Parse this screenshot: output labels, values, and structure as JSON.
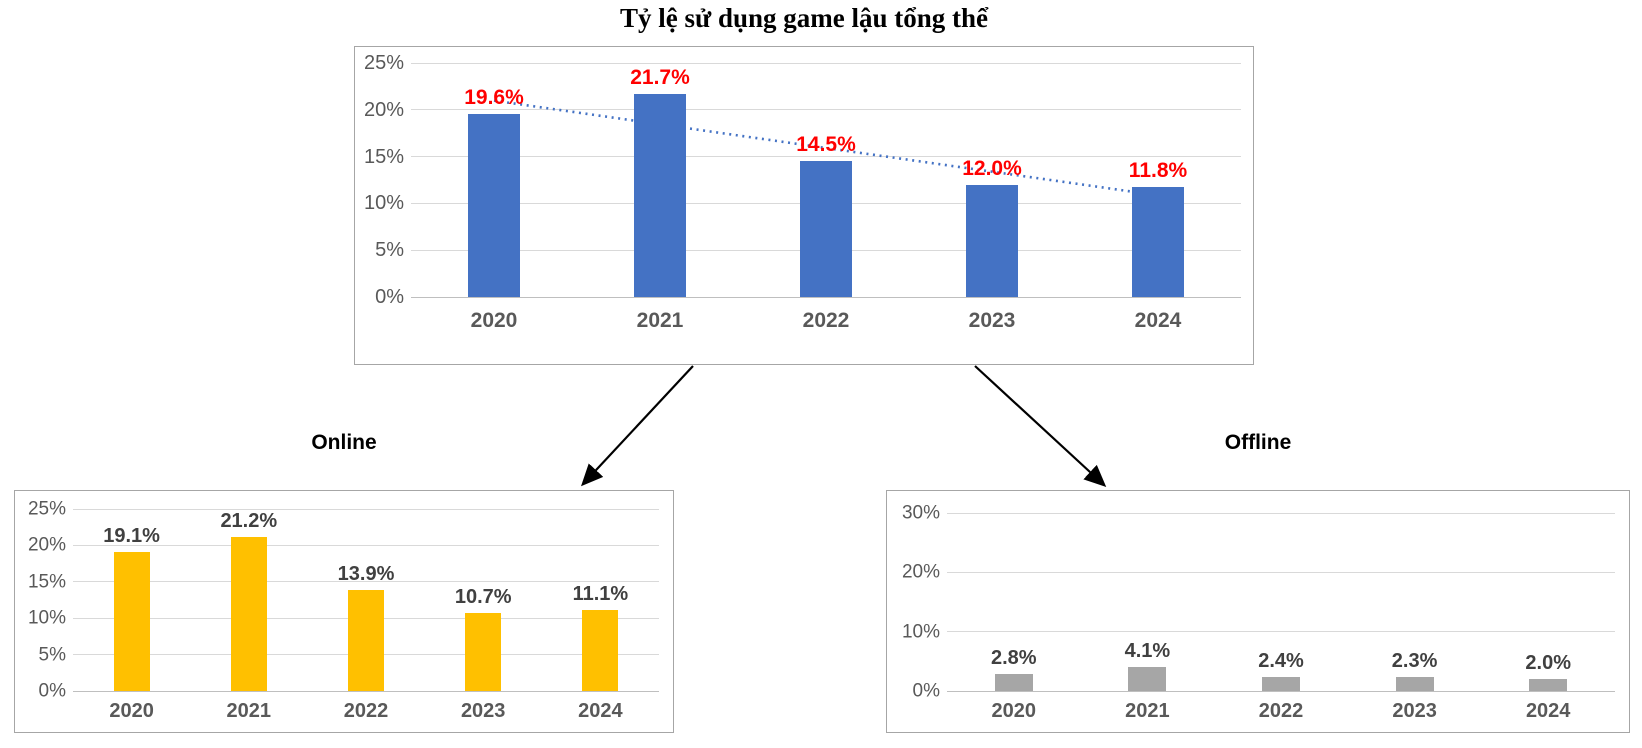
{
  "chart_data": [
    {
      "id": "overall",
      "type": "bar",
      "title": "Tỷ lệ sử dụng game lậu tổng thể",
      "categories": [
        "2020",
        "2021",
        "2022",
        "2023",
        "2024"
      ],
      "values": [
        19.6,
        21.7,
        14.5,
        12.0,
        11.8
      ],
      "value_labels": [
        "19.6%",
        "21.7%",
        "14.5%",
        "12.0%",
        "11.8%"
      ],
      "ylim": [
        0,
        25
      ],
      "ystep": 5,
      "y_tick_labels": [
        "0%",
        "5%",
        "10%",
        "15%",
        "20%",
        "25%"
      ],
      "xlabel": "",
      "ylabel": "",
      "grid": true,
      "legend": "none",
      "bar_color": "#4472C4",
      "value_label_color": "#FF0000",
      "trendline": {
        "type": "linear",
        "style": "dotted",
        "color": "#4472C4"
      }
    },
    {
      "id": "online",
      "type": "bar",
      "title": "Online",
      "categories": [
        "2020",
        "2021",
        "2022",
        "2023",
        "2024"
      ],
      "values": [
        19.1,
        21.2,
        13.9,
        10.7,
        11.1
      ],
      "value_labels": [
        "19.1%",
        "21.2%",
        "13.9%",
        "10.7%",
        "11.1%"
      ],
      "ylim": [
        0,
        25
      ],
      "ystep": 5,
      "y_tick_labels": [
        "0%",
        "5%",
        "10%",
        "15%",
        "20%",
        "25%"
      ],
      "xlabel": "",
      "ylabel": "",
      "grid": true,
      "legend": "none",
      "bar_color": "#FFC000",
      "value_label_color": "#404040",
      "trendline": null
    },
    {
      "id": "offline",
      "type": "bar",
      "title": "Offline",
      "categories": [
        "2020",
        "2021",
        "2022",
        "2023",
        "2024"
      ],
      "values": [
        2.8,
        4.1,
        2.4,
        2.3,
        2.0
      ],
      "value_labels": [
        "2.8%",
        "4.1%",
        "2.4%",
        "2.3%",
        "2.0%"
      ],
      "ylim": [
        0,
        30
      ],
      "ystep": 10,
      "y_tick_labels": [
        "0%",
        "10%",
        "20%",
        "30%"
      ],
      "xlabel": "",
      "ylabel": "",
      "grid": true,
      "legend": "none",
      "bar_color": "#A6A6A6",
      "value_label_color": "#404040",
      "trendline": null
    }
  ],
  "annotations": {
    "arrows": [
      {
        "from": "overall",
        "to": "online"
      },
      {
        "from": "overall",
        "to": "offline"
      }
    ],
    "arrow_color": "#000000"
  },
  "style_tokens": {
    "axis_label_color": "#595959",
    "gridline_color": "#d9d9d9",
    "panel_border_color": "#a6a6a6",
    "background": "#ffffff"
  }
}
